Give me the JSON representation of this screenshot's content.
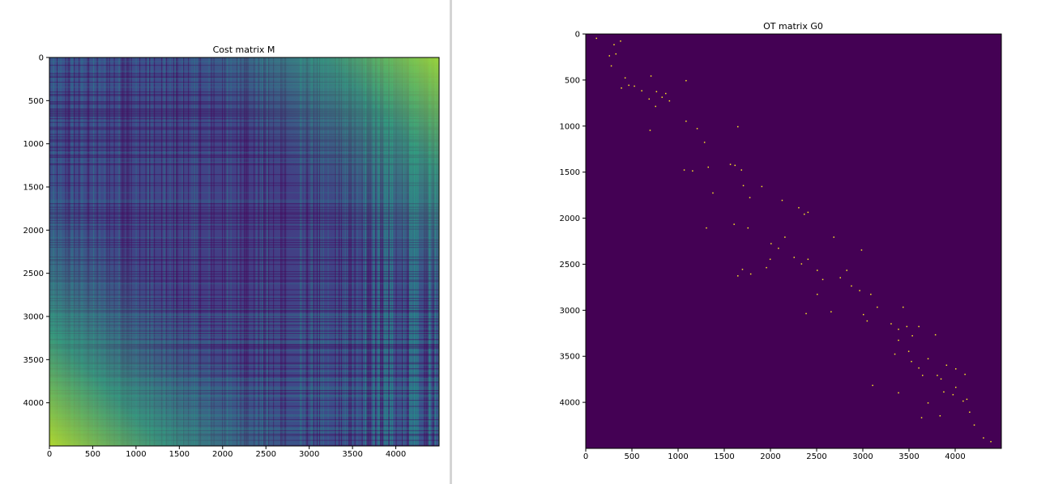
{
  "colors": {
    "page_background": "#ffffff",
    "divider": "#d4d4d4",
    "axis": "#000000",
    "colormap": "viridis",
    "viridis_stops": [
      "#440154",
      "#482878",
      "#3e4a89",
      "#31688e",
      "#26828e",
      "#1f9e89",
      "#35b779",
      "#6ece58",
      "#b5de2b",
      "#fde725"
    ],
    "ot_background": "#440154",
    "ot_point": "#fde725"
  },
  "chart_data": [
    {
      "type": "heatmap",
      "title": "Cost matrix M",
      "xlabel": "",
      "ylabel": "",
      "xlim": [
        0,
        4500
      ],
      "ylim": [
        4500,
        0
      ],
      "x_ticks": [
        "0",
        "500",
        "1000",
        "1500",
        "2000",
        "2500",
        "3000",
        "3500",
        "4000"
      ],
      "y_ticks": [
        "0",
        "500",
        "1000",
        "1500",
        "2000",
        "2500",
        "3000",
        "3500",
        "4000"
      ],
      "grid": false,
      "colormap": "viridis",
      "value_range": [
        0,
        1
      ],
      "corner_values": {
        "top_left": 0.15,
        "top_right": 0.85,
        "bottom_left": 0.9,
        "bottom_right": 0.1
      },
      "description_values": {
        "dominant_band_value": 0.2,
        "bright_columns_near": [
          3700,
          3800,
          3900,
          4200,
          4400
        ],
        "bright_rows_region": [
          2900,
          4500
        ]
      }
    },
    {
      "type": "heatmap",
      "title": "OT matrix G0",
      "xlabel": "",
      "ylabel": "",
      "xlim": [
        0,
        4500
      ],
      "ylim": [
        4500,
        0
      ],
      "x_ticks": [
        "0",
        "500",
        "1000",
        "1500",
        "2000",
        "2500",
        "3000",
        "3500",
        "4000"
      ],
      "y_ticks": [
        "0",
        "500",
        "1000",
        "1500",
        "2000",
        "2500",
        "3000",
        "3500",
        "4000"
      ],
      "grid": false,
      "colormap": "viridis",
      "background_value": 0,
      "nonzero_points": [
        [
          110,
          40
        ],
        [
          300,
          110
        ],
        [
          370,
          70
        ],
        [
          250,
          230
        ],
        [
          320,
          210
        ],
        [
          270,
          340
        ],
        [
          420,
          470
        ],
        [
          460,
          550
        ],
        [
          520,
          560
        ],
        [
          380,
          580
        ],
        [
          600,
          610
        ],
        [
          760,
          620
        ],
        [
          700,
          450
        ],
        [
          680,
          700
        ],
        [
          820,
          680
        ],
        [
          900,
          720
        ],
        [
          750,
          780
        ],
        [
          1080,
          500
        ],
        [
          1200,
          1020
        ],
        [
          860,
          640
        ],
        [
          690,
          1040
        ],
        [
          1080,
          940
        ],
        [
          1060,
          1470
        ],
        [
          1150,
          1480
        ],
        [
          1320,
          1440
        ],
        [
          1370,
          1720
        ],
        [
          1280,
          1170
        ],
        [
          1640,
          1000
        ],
        [
          1610,
          1420
        ],
        [
          1680,
          1470
        ],
        [
          1700,
          1640
        ],
        [
          1770,
          1770
        ],
        [
          1560,
          1410
        ],
        [
          1900,
          1650
        ],
        [
          2120,
          1800
        ],
        [
          1300,
          2100
        ],
        [
          1750,
          2100
        ],
        [
          1600,
          2060
        ],
        [
          2300,
          1880
        ],
        [
          2360,
          1950
        ],
        [
          2400,
          1930
        ],
        [
          2000,
          2270
        ],
        [
          2080,
          2320
        ],
        [
          1990,
          2440
        ],
        [
          2150,
          2200
        ],
        [
          2250,
          2420
        ],
        [
          1950,
          2530
        ],
        [
          1690,
          2550
        ],
        [
          1780,
          2600
        ],
        [
          1640,
          2620
        ],
        [
          2330,
          2490
        ],
        [
          2400,
          2440
        ],
        [
          2500,
          2560
        ],
        [
          2560,
          2660
        ],
        [
          2820,
          2560
        ],
        [
          2750,
          2640
        ],
        [
          2680,
          2200
        ],
        [
          2980,
          2340
        ],
        [
          2500,
          2820
        ],
        [
          2380,
          3030
        ],
        [
          2650,
          3010
        ],
        [
          2870,
          2730
        ],
        [
          2960,
          2780
        ],
        [
          3080,
          2820
        ],
        [
          3000,
          3040
        ],
        [
          3040,
          3110
        ],
        [
          3300,
          3140
        ],
        [
          3380,
          3200
        ],
        [
          3150,
          2960
        ],
        [
          3340,
          3470
        ],
        [
          3430,
          2960
        ],
        [
          3380,
          3320
        ],
        [
          3490,
          3440
        ],
        [
          3520,
          3550
        ],
        [
          3600,
          3620
        ],
        [
          3700,
          3520
        ],
        [
          3640,
          3700
        ],
        [
          3800,
          3700
        ],
        [
          3840,
          3740
        ],
        [
          3900,
          3590
        ],
        [
          3470,
          3170
        ],
        [
          3530,
          3270
        ],
        [
          3600,
          3170
        ],
        [
          3780,
          3260
        ],
        [
          4000,
          3630
        ],
        [
          4100,
          3690
        ],
        [
          4000,
          3830
        ],
        [
          3970,
          3910
        ],
        [
          4080,
          3980
        ],
        [
          3630,
          4160
        ],
        [
          3830,
          4140
        ],
        [
          3700,
          4000
        ],
        [
          4150,
          4100
        ],
        [
          4200,
          4240
        ],
        [
          4300,
          4380
        ],
        [
          4380,
          4420
        ],
        [
          3380,
          3890
        ],
        [
          3100,
          3810
        ],
        [
          4120,
          3960
        ],
        [
          3870,
          3880
        ]
      ]
    }
  ]
}
